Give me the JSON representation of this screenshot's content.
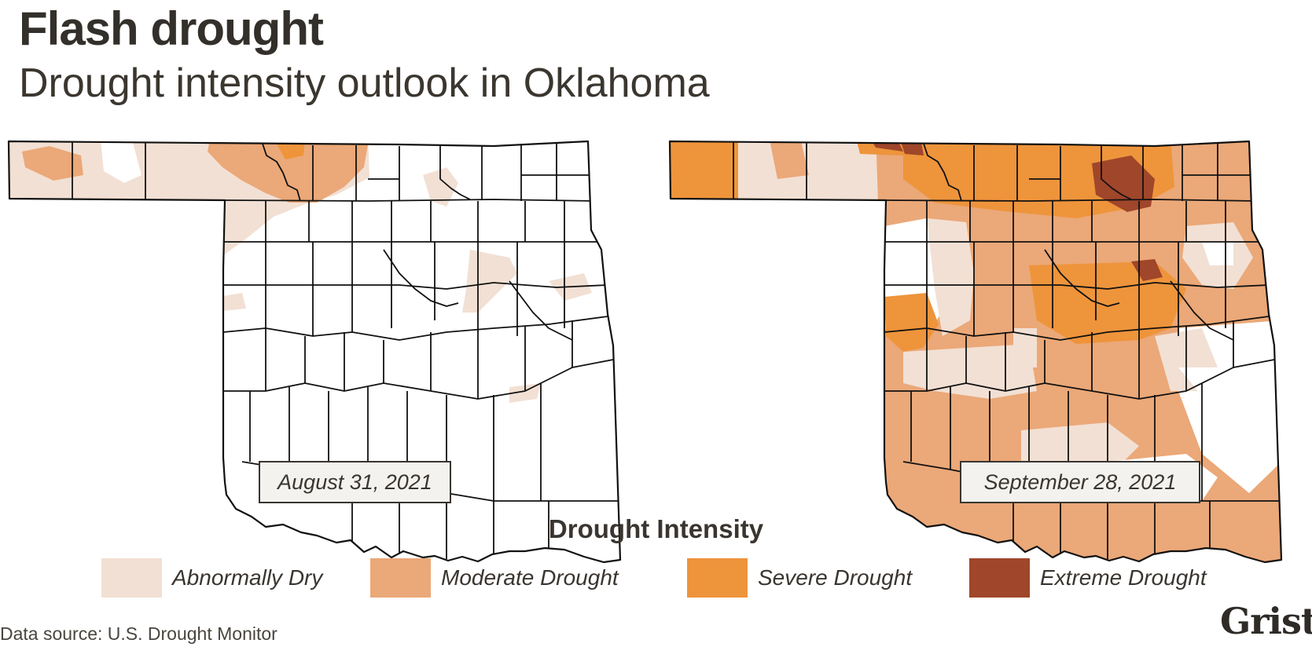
{
  "header": {
    "title": "Flash drought",
    "subtitle": "Drought intensity outlook in Oklahoma"
  },
  "maps": [
    {
      "date": "August 31, 2021"
    },
    {
      "date": "September 28, 2021"
    }
  ],
  "legend": {
    "title": "Drought Intensity",
    "items": [
      {
        "label": "Abnormally Dry",
        "color": "#f2e0d4"
      },
      {
        "label": "Moderate Drought",
        "color": "#eba878"
      },
      {
        "label": "Severe Drought",
        "color": "#ee943b"
      },
      {
        "label": "Extreme Drought",
        "color": "#a0462a"
      }
    ]
  },
  "footer": {
    "source": "Data source: U.S. Drought Monitor",
    "brand": "Grist"
  }
}
